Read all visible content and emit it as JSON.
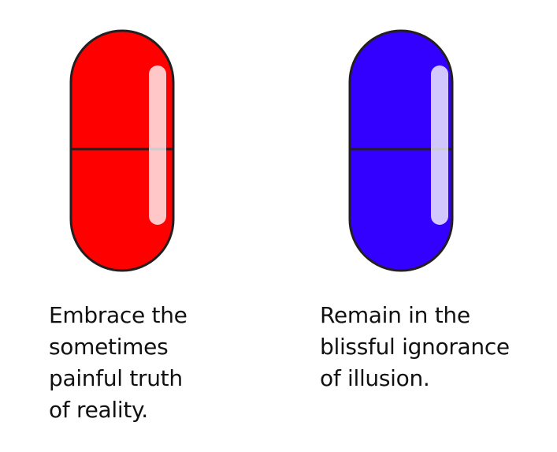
{
  "choices": [
    {
      "id": "red",
      "color": "#ff0000",
      "caption_lines": [
        "Embrace the",
        "sometimes",
        "painful truth",
        "of reality."
      ]
    },
    {
      "id": "blue",
      "color": "#3300ff",
      "caption_lines": [
        "Remain in the",
        "blissful ignorance",
        "of illusion."
      ]
    }
  ],
  "outline_color": "#231f20",
  "highlight_color": "#ffffff"
}
